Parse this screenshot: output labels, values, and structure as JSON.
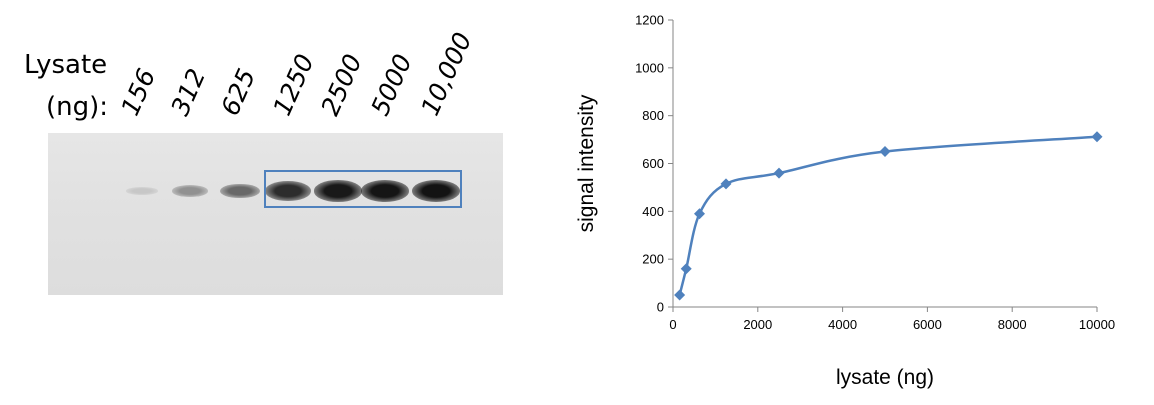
{
  "blot": {
    "label_line1": "Lysate",
    "label_line2": "(ng):",
    "lanes": [
      "156",
      "312",
      "625",
      "1250",
      "2500",
      "5000",
      "10,000"
    ],
    "band_intensities": [
      0.08,
      0.35,
      0.55,
      0.85,
      0.95,
      0.97,
      0.98
    ]
  },
  "chart_data": {
    "type": "line",
    "x": [
      156,
      312,
      625,
      1250,
      2500,
      5000,
      10000
    ],
    "series": [
      {
        "values": [
          50,
          160,
          390,
          515,
          560,
          650,
          712
        ]
      }
    ],
    "xlabel": "lysate (ng)",
    "ylabel": "signal intensity",
    "xlim": [
      0,
      10000
    ],
    "ylim": [
      0,
      1200
    ],
    "xticks": [
      0,
      2000,
      4000,
      6000,
      8000,
      10000
    ],
    "yticks": [
      0,
      200,
      400,
      600,
      800,
      1000,
      1200
    ],
    "grid": false,
    "series_color": "#4f81bd",
    "marker": "diamond"
  }
}
